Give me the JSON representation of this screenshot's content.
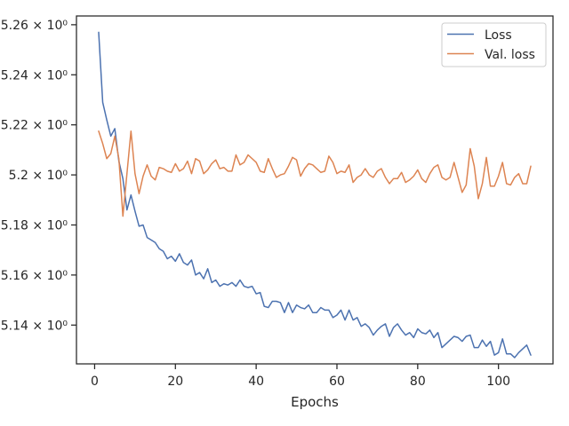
{
  "chart_data": {
    "type": "line",
    "title": "",
    "xlabel": "Epochs",
    "ylabel": "",
    "xlim": [
      -4.5,
      113.5
    ],
    "ylim": [
      5.1245,
      5.2635
    ],
    "x_ticks": [
      0,
      20,
      40,
      60,
      80,
      100
    ],
    "x_tick_labels": [
      "0",
      "20",
      "40",
      "60",
      "80",
      "100"
    ],
    "y_ticks": [
      5.14,
      5.16,
      5.18,
      5.2,
      5.22,
      5.24,
      5.26
    ],
    "y_tick_labels": [
      "5.14 × 10⁰",
      "5.16 × 10⁰",
      "5.18 × 10⁰",
      "5.2 × 10⁰",
      "5.22 × 10⁰",
      "5.24 × 10⁰",
      "5.26 × 10⁰"
    ],
    "y_scale": "log",
    "grid": false,
    "legend_position": "top-right",
    "series": [
      {
        "name": "Loss",
        "color": "#4c72b0",
        "x": [
          1,
          2,
          3,
          4,
          5,
          6,
          7,
          8,
          9,
          10,
          11,
          12,
          13,
          14,
          15,
          16,
          17,
          18,
          19,
          20,
          21,
          22,
          23,
          24,
          25,
          26,
          27,
          28,
          29,
          30,
          31,
          32,
          33,
          34,
          35,
          36,
          37,
          38,
          39,
          40,
          41,
          42,
          43,
          44,
          45,
          46,
          47,
          48,
          49,
          50,
          51,
          52,
          53,
          54,
          55,
          56,
          57,
          58,
          59,
          60,
          61,
          62,
          63,
          64,
          65,
          66,
          67,
          68,
          69,
          70,
          71,
          72,
          73,
          74,
          75,
          76,
          77,
          78,
          79,
          80,
          81,
          82,
          83,
          84,
          85,
          86,
          87,
          88,
          89,
          90,
          91,
          92,
          93,
          94,
          95,
          96,
          97,
          98,
          99,
          100,
          101,
          102,
          103,
          104,
          105,
          106,
          107,
          108
        ],
        "values": [
          5.257,
          5.229,
          5.222,
          5.2155,
          5.2185,
          5.2055,
          5.1985,
          5.186,
          5.192,
          5.1855,
          5.1795,
          5.18,
          5.175,
          5.174,
          5.173,
          5.1705,
          5.1695,
          5.1665,
          5.1675,
          5.1655,
          5.1685,
          5.165,
          5.164,
          5.166,
          5.16,
          5.161,
          5.1585,
          5.1625,
          5.157,
          5.158,
          5.1555,
          5.1565,
          5.156,
          5.157,
          5.1555,
          5.158,
          5.1555,
          5.155,
          5.1555,
          5.1525,
          5.153,
          5.1475,
          5.147,
          5.1495,
          5.1495,
          5.149,
          5.145,
          5.149,
          5.145,
          5.148,
          5.147,
          5.1465,
          5.148,
          5.145,
          5.145,
          5.147,
          5.146,
          5.146,
          5.143,
          5.144,
          5.146,
          5.142,
          5.146,
          5.142,
          5.143,
          5.1395,
          5.1405,
          5.139,
          5.136,
          5.138,
          5.1395,
          5.1405,
          5.1355,
          5.139,
          5.1405,
          5.138,
          5.136,
          5.137,
          5.135,
          5.1385,
          5.137,
          5.1365,
          5.138,
          5.135,
          5.137,
          5.131,
          5.1325,
          5.134,
          5.1355,
          5.135,
          5.1335,
          5.1355,
          5.136,
          5.131,
          5.131,
          5.134,
          5.1315,
          5.1335,
          5.128,
          5.129,
          5.1345,
          5.1285,
          5.1285,
          5.127,
          5.129,
          5.1305,
          5.132,
          5.128
        ]
      },
      {
        "name": "Val. loss",
        "color": "#dd8452",
        "x": [
          1,
          2,
          3,
          4,
          5,
          6,
          7,
          8,
          9,
          10,
          11,
          12,
          13,
          14,
          15,
          16,
          17,
          18,
          19,
          20,
          21,
          22,
          23,
          24,
          25,
          26,
          27,
          28,
          29,
          30,
          31,
          32,
          33,
          34,
          35,
          36,
          37,
          38,
          39,
          40,
          41,
          42,
          43,
          44,
          45,
          46,
          47,
          48,
          49,
          50,
          51,
          52,
          53,
          54,
          55,
          56,
          57,
          58,
          59,
          60,
          61,
          62,
          63,
          64,
          65,
          66,
          67,
          68,
          69,
          70,
          71,
          72,
          73,
          74,
          75,
          76,
          77,
          78,
          79,
          80,
          81,
          82,
          83,
          84,
          85,
          86,
          87,
          88,
          89,
          90,
          91,
          92,
          93,
          94,
          95,
          96,
          97,
          98,
          99,
          100,
          101,
          102,
          103,
          104,
          105,
          106,
          107,
          108
        ],
        "values": [
          5.2175,
          5.2125,
          5.2065,
          5.2085,
          5.2155,
          5.2065,
          5.1835,
          5.2005,
          5.2175,
          5.2005,
          5.1925,
          5.1995,
          5.204,
          5.1995,
          5.198,
          5.203,
          5.2025,
          5.2015,
          5.201,
          5.2045,
          5.2015,
          5.2025,
          5.2055,
          5.2005,
          5.2065,
          5.2055,
          5.2005,
          5.202,
          5.2045,
          5.206,
          5.2025,
          5.203,
          5.2015,
          5.2015,
          5.208,
          5.204,
          5.205,
          5.208,
          5.2065,
          5.205,
          5.2015,
          5.201,
          5.2065,
          5.2025,
          5.199,
          5.2,
          5.2005,
          5.2035,
          5.207,
          5.206,
          5.1995,
          5.2025,
          5.2045,
          5.204,
          5.2025,
          5.201,
          5.2015,
          5.2075,
          5.205,
          5.2005,
          5.2015,
          5.201,
          5.204,
          5.197,
          5.199,
          5.2,
          5.2025,
          5.2,
          5.199,
          5.2015,
          5.2025,
          5.199,
          5.1965,
          5.1985,
          5.1985,
          5.201,
          5.197,
          5.198,
          5.1995,
          5.202,
          5.1985,
          5.197,
          5.2005,
          5.203,
          5.204,
          5.199,
          5.198,
          5.199,
          5.205,
          5.199,
          5.193,
          5.196,
          5.2105,
          5.2035,
          5.1905,
          5.1965,
          5.207,
          5.1955,
          5.1955,
          5.1995,
          5.205,
          5.1965,
          5.196,
          5.199,
          5.2005,
          5.1965,
          5.1965,
          5.2035
        ]
      }
    ]
  }
}
